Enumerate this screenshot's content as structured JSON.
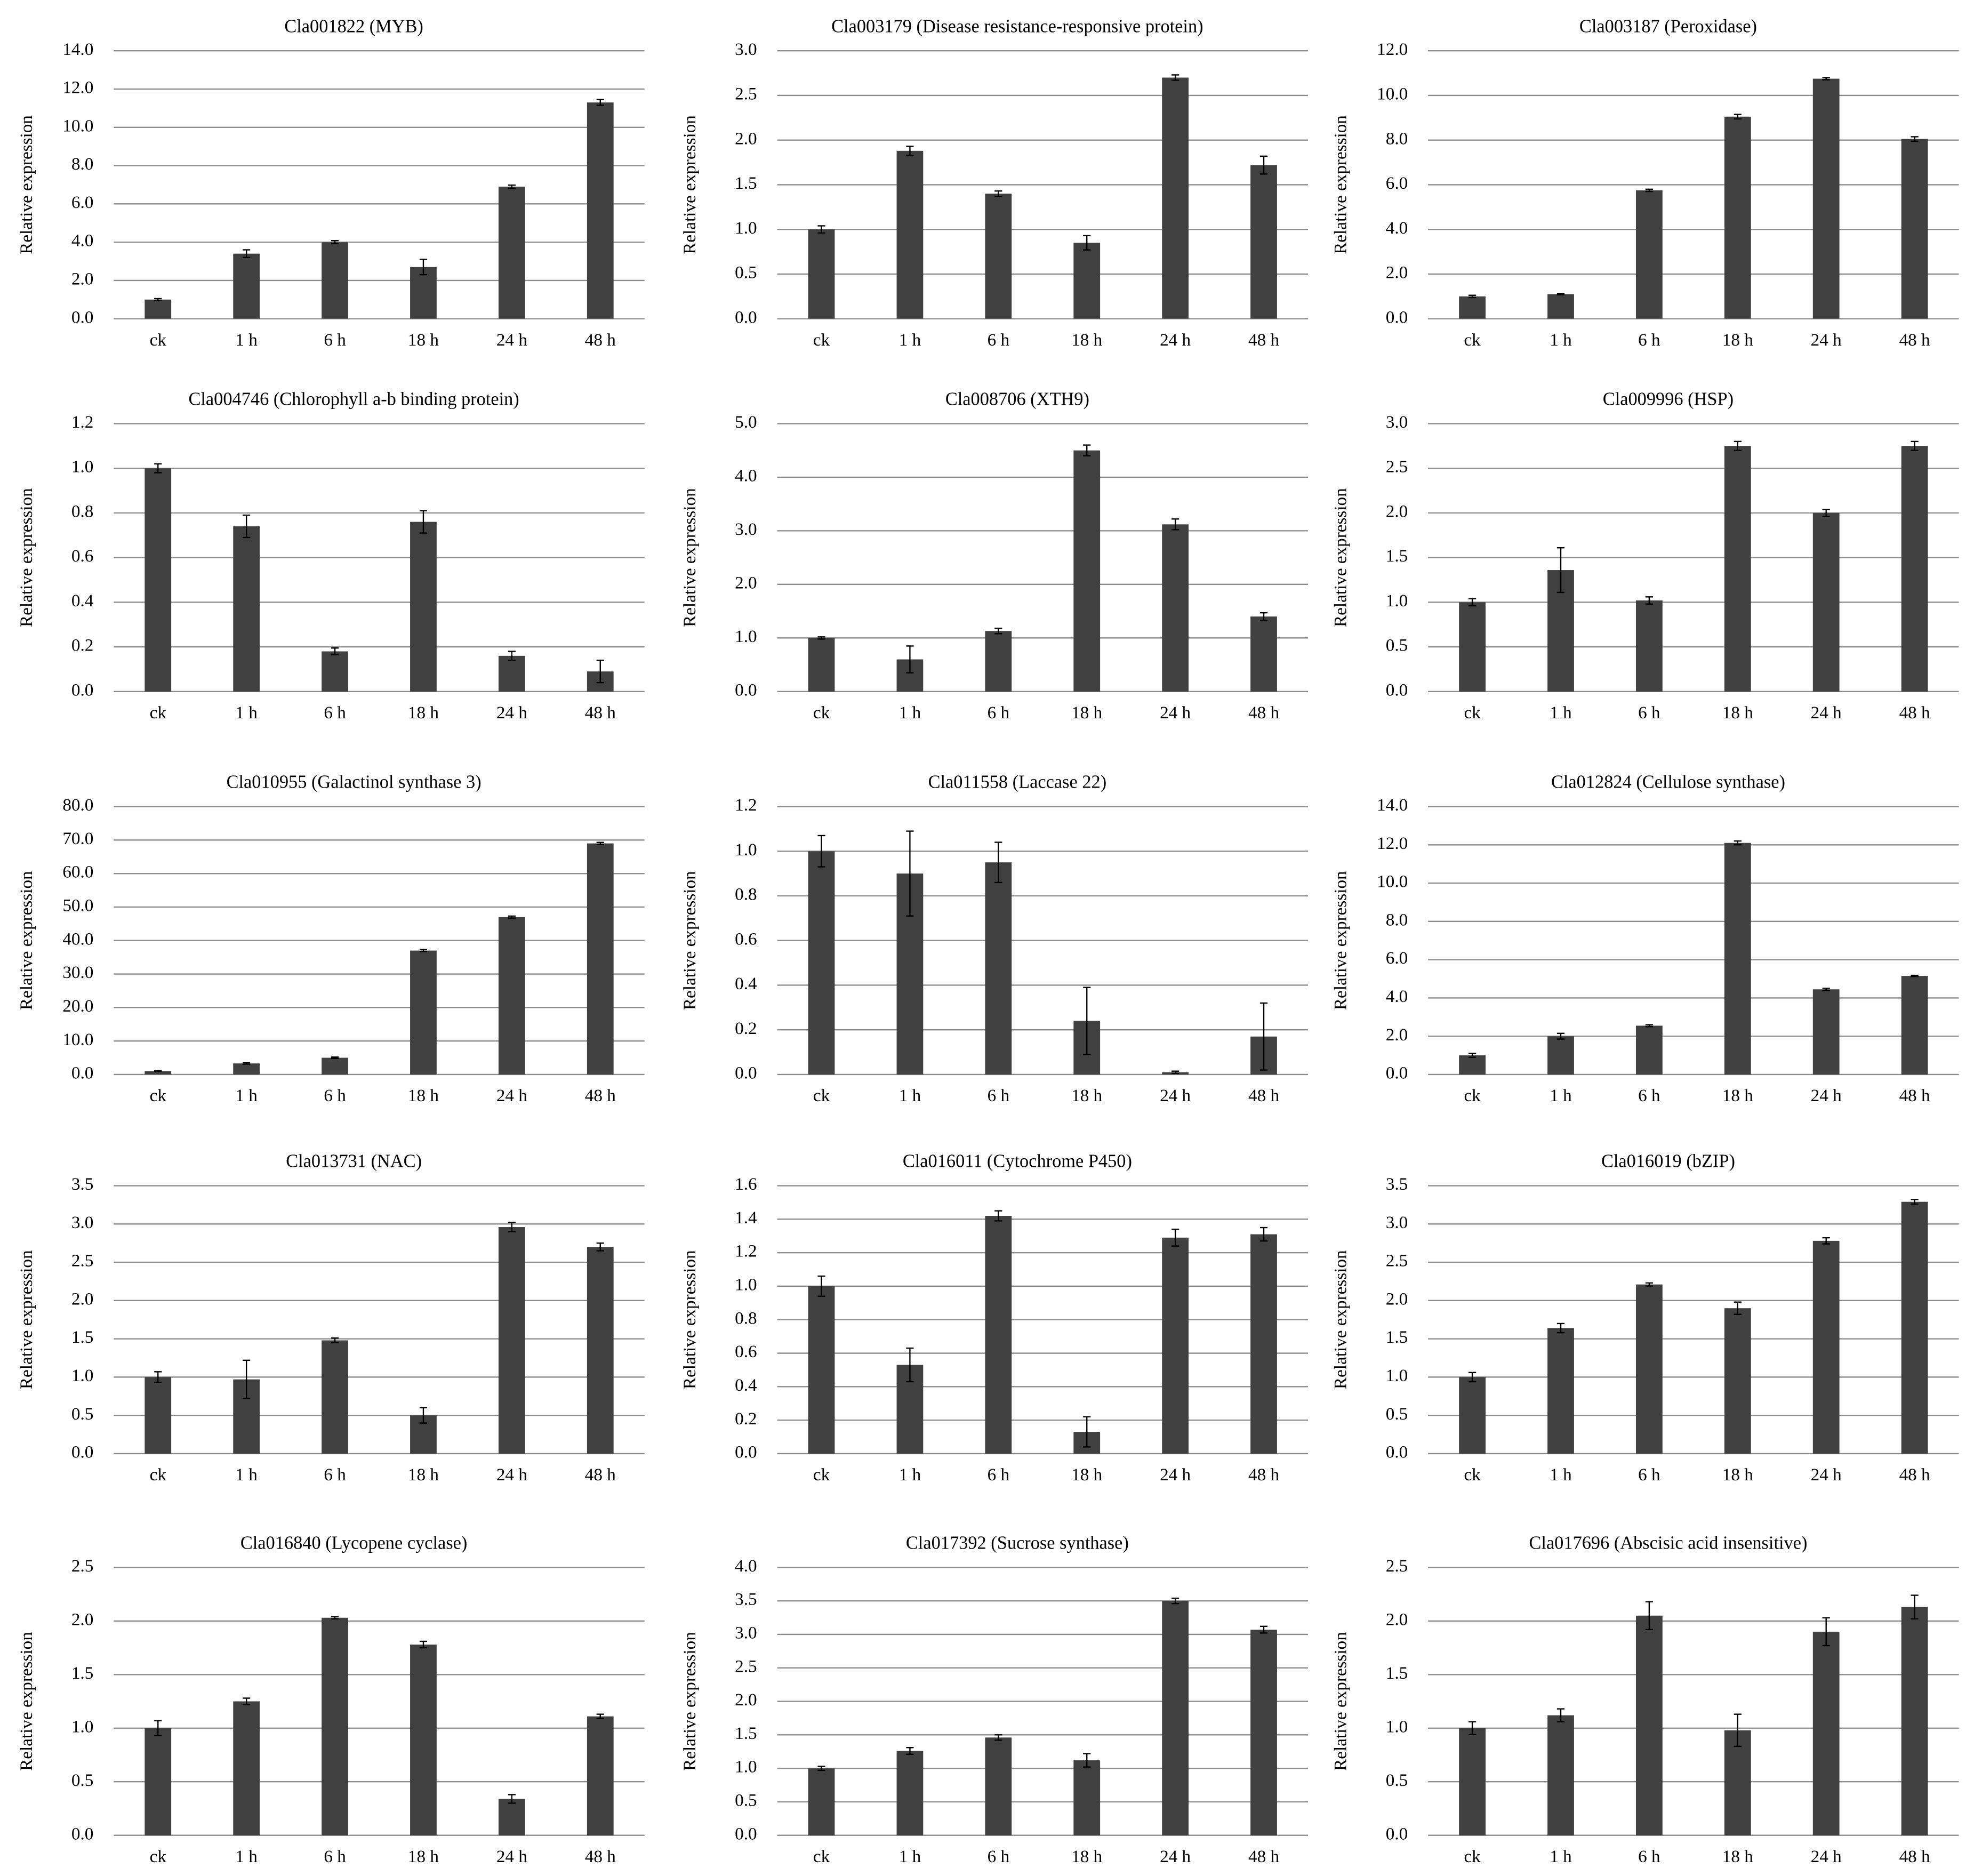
{
  "chart_data": [
    {
      "type": "bar",
      "title": "Cla001822 (MYB)",
      "y_label": "Relative expression",
      "categories": [
        "ck",
        "1 h",
        "6 h",
        "18 h",
        "24 h",
        "48 h"
      ],
      "values": [
        1.0,
        3.4,
        4.0,
        2.7,
        6.9,
        11.3
      ],
      "errors": [
        0.05,
        0.2,
        0.08,
        0.4,
        0.08,
        0.15
      ],
      "color": "#404040",
      "ylim": [
        0,
        14
      ],
      "yticks": [
        {
          "value": 0,
          "label": "0.0"
        },
        {
          "value": 2,
          "label": "2.0"
        },
        {
          "value": 4,
          "label": "4.0"
        },
        {
          "value": 6,
          "label": "6.0"
        },
        {
          "value": 8,
          "label": "8.0"
        },
        {
          "value": 10,
          "label": "10.0"
        },
        {
          "value": 12,
          "label": "12.0"
        },
        {
          "value": 14,
          "label": "14.0"
        }
      ],
      "grid": true
    },
    {
      "type": "bar",
      "title": "Cla003179 (Disease resistance-responsive protein)",
      "y_label": "Relative expression",
      "categories": [
        "ck",
        "1 h",
        "6 h",
        "18 h",
        "24 h",
        "48 h"
      ],
      "values": [
        1.0,
        1.88,
        1.4,
        0.85,
        2.7,
        1.72
      ],
      "errors": [
        0.04,
        0.05,
        0.03,
        0.08,
        0.03,
        0.1
      ],
      "color": "#404040",
      "ylim": [
        0,
        3
      ],
      "yticks": [
        {
          "value": 0,
          "label": "0.0"
        },
        {
          "value": 0.5,
          "label": "0.5"
        },
        {
          "value": 1,
          "label": "1.0"
        },
        {
          "value": 1.5,
          "label": "1.5"
        },
        {
          "value": 2,
          "label": "2.0"
        },
        {
          "value": 2.5,
          "label": "2.5"
        },
        {
          "value": 3,
          "label": "3.0"
        }
      ],
      "grid": true
    },
    {
      "type": "bar",
      "title": "Cla003187 (Peroxidase)",
      "y_label": "Relative expression",
      "categories": [
        "ck",
        "1 h",
        "6 h",
        "18 h",
        "24 h",
        "48 h"
      ],
      "values": [
        1.0,
        1.1,
        5.75,
        9.05,
        10.75,
        8.05
      ],
      "errors": [
        0.05,
        0.03,
        0.05,
        0.1,
        0.05,
        0.1
      ],
      "color": "#404040",
      "ylim": [
        0,
        12
      ],
      "yticks": [
        {
          "value": 0,
          "label": "0.0"
        },
        {
          "value": 2,
          "label": "2.0"
        },
        {
          "value": 4,
          "label": "4.0"
        },
        {
          "value": 6,
          "label": "6.0"
        },
        {
          "value": 8,
          "label": "8.0"
        },
        {
          "value": 10,
          "label": "10.0"
        },
        {
          "value": 12,
          "label": "12.0"
        }
      ],
      "grid": true
    },
    {
      "type": "bar",
      "title": "Cla004746 (Chlorophyll a-b binding protein)",
      "y_label": "Relative expression",
      "categories": [
        "ck",
        "1 h",
        "6 h",
        "18 h",
        "24 h",
        "48 h"
      ],
      "values": [
        1.0,
        0.74,
        0.18,
        0.76,
        0.16,
        0.09
      ],
      "errors": [
        0.02,
        0.05,
        0.015,
        0.05,
        0.02,
        0.05
      ],
      "color": "#404040",
      "ylim": [
        0,
        1.2
      ],
      "yticks": [
        {
          "value": 0,
          "label": "0.0"
        },
        {
          "value": 0.2,
          "label": "0.2"
        },
        {
          "value": 0.4,
          "label": "0.4"
        },
        {
          "value": 0.6,
          "label": "0.6"
        },
        {
          "value": 0.8,
          "label": "0.8"
        },
        {
          "value": 1,
          "label": "1.0"
        },
        {
          "value": 1.2,
          "label": "1.2"
        }
      ],
      "grid": true
    },
    {
      "type": "bar",
      "title": "Cla008706 (XTH9)",
      "y_label": "Relative expression",
      "categories": [
        "ck",
        "1 h",
        "6 h",
        "18 h",
        "24 h",
        "48 h"
      ],
      "values": [
        1.0,
        0.6,
        1.13,
        4.5,
        3.12,
        1.4
      ],
      "errors": [
        0.02,
        0.25,
        0.05,
        0.1,
        0.1,
        0.07
      ],
      "color": "#404040",
      "ylim": [
        0,
        5
      ],
      "yticks": [
        {
          "value": 0,
          "label": "0.0"
        },
        {
          "value": 1,
          "label": "1.0"
        },
        {
          "value": 2,
          "label": "2.0"
        },
        {
          "value": 3,
          "label": "3.0"
        },
        {
          "value": 4,
          "label": "4.0"
        },
        {
          "value": 5,
          "label": "5.0"
        }
      ],
      "grid": true
    },
    {
      "type": "bar",
      "title": "Cla009996 (HSP)",
      "y_label": "Relative expression",
      "categories": [
        "ck",
        "1 h",
        "6 h",
        "18 h",
        "24 h",
        "48 h"
      ],
      "values": [
        1.0,
        1.36,
        1.02,
        2.75,
        2.0,
        2.75
      ],
      "errors": [
        0.04,
        0.25,
        0.04,
        0.05,
        0.04,
        0.05
      ],
      "color": "#404040",
      "ylim": [
        0,
        3
      ],
      "yticks": [
        {
          "value": 0,
          "label": "0.0"
        },
        {
          "value": 0.5,
          "label": "0.5"
        },
        {
          "value": 1,
          "label": "1.0"
        },
        {
          "value": 1.5,
          "label": "1.5"
        },
        {
          "value": 2,
          "label": "2.0"
        },
        {
          "value": 2.5,
          "label": "2.5"
        },
        {
          "value": 3,
          "label": "3.0"
        }
      ],
      "grid": true
    },
    {
      "type": "bar",
      "title": "Cla010955 (Galactinol synthase 3)",
      "y_label": "Relative expression",
      "categories": [
        "ck",
        "1 h",
        "6 h",
        "18 h",
        "24 h",
        "48 h"
      ],
      "values": [
        1.0,
        3.3,
        5.0,
        37,
        47,
        69
      ],
      "errors": [
        0.1,
        0.2,
        0.2,
        0.3,
        0.3,
        0.3
      ],
      "color": "#404040",
      "ylim": [
        0,
        80
      ],
      "yticks": [
        {
          "value": 0,
          "label": "0.0"
        },
        {
          "value": 10,
          "label": "10.0"
        },
        {
          "value": 20,
          "label": "20.0"
        },
        {
          "value": 30,
          "label": "30.0"
        },
        {
          "value": 40,
          "label": "40.0"
        },
        {
          "value": 50,
          "label": "50.0"
        },
        {
          "value": 60,
          "label": "60.0"
        },
        {
          "value": 70,
          "label": "70.0"
        },
        {
          "value": 80,
          "label": "80.0"
        }
      ],
      "grid": true
    },
    {
      "type": "bar",
      "title": "Cla011558 (Laccase 22)",
      "y_label": "Relative expression",
      "categories": [
        "ck",
        "1 h",
        "6 h",
        "18 h",
        "24 h",
        "48 h"
      ],
      "values": [
        1.0,
        0.9,
        0.95,
        0.24,
        0.01,
        0.17
      ],
      "errors": [
        0.07,
        0.19,
        0.09,
        0.15,
        0.005,
        0.15
      ],
      "color": "#404040",
      "ylim": [
        0,
        1.2
      ],
      "yticks": [
        {
          "value": 0,
          "label": "0.0"
        },
        {
          "value": 0.2,
          "label": "0.2"
        },
        {
          "value": 0.4,
          "label": "0.4"
        },
        {
          "value": 0.6,
          "label": "0.6"
        },
        {
          "value": 0.8,
          "label": "0.8"
        },
        {
          "value": 1,
          "label": "1.0"
        },
        {
          "value": 1.2,
          "label": "1.2"
        }
      ],
      "grid": true
    },
    {
      "type": "bar",
      "title": "Cla012824 (Cellulose synthase)",
      "y_label": "Relative expression",
      "categories": [
        "ck",
        "1 h",
        "6 h",
        "18 h",
        "24 h",
        "48 h"
      ],
      "values": [
        1.0,
        2.0,
        2.55,
        12.1,
        4.45,
        5.15
      ],
      "errors": [
        0.1,
        0.15,
        0.05,
        0.1,
        0.05,
        0.03
      ],
      "color": "#404040",
      "ylim": [
        0,
        14
      ],
      "yticks": [
        {
          "value": 0,
          "label": "0.0"
        },
        {
          "value": 2,
          "label": "2.0"
        },
        {
          "value": 4,
          "label": "4.0"
        },
        {
          "value": 6,
          "label": "6.0"
        },
        {
          "value": 8,
          "label": "8.0"
        },
        {
          "value": 10,
          "label": "10.0"
        },
        {
          "value": 12,
          "label": "12.0"
        },
        {
          "value": 14,
          "label": "14.0"
        }
      ],
      "grid": true
    },
    {
      "type": "bar",
      "title": "Cla013731 (NAC)",
      "y_label": "Relative expression",
      "categories": [
        "ck",
        "1 h",
        "6 h",
        "18 h",
        "24 h",
        "48 h"
      ],
      "values": [
        1.0,
        0.97,
        1.48,
        0.5,
        2.96,
        2.7
      ],
      "errors": [
        0.07,
        0.25,
        0.03,
        0.1,
        0.06,
        0.05
      ],
      "color": "#404040",
      "ylim": [
        0,
        3.5
      ],
      "yticks": [
        {
          "value": 0,
          "label": "0.0"
        },
        {
          "value": 0.5,
          "label": "0.5"
        },
        {
          "value": 1,
          "label": "1.0"
        },
        {
          "value": 1.5,
          "label": "1.5"
        },
        {
          "value": 2,
          "label": "2.0"
        },
        {
          "value": 2.5,
          "label": "2.5"
        },
        {
          "value": 3,
          "label": "3.0"
        },
        {
          "value": 3.5,
          "label": "3.5"
        }
      ],
      "grid": true
    },
    {
      "type": "bar",
      "title": "Cla016011 (Cytochrome P450)",
      "y_label": "Relative expression",
      "categories": [
        "ck",
        "1 h",
        "6 h",
        "18 h",
        "24 h",
        "48 h"
      ],
      "values": [
        1.0,
        0.53,
        1.42,
        0.13,
        1.29,
        1.31
      ],
      "errors": [
        0.06,
        0.1,
        0.03,
        0.09,
        0.05,
        0.04
      ],
      "color": "#404040",
      "ylim": [
        0,
        1.6
      ],
      "yticks": [
        {
          "value": 0,
          "label": "0.0"
        },
        {
          "value": 0.2,
          "label": "0.2"
        },
        {
          "value": 0.4,
          "label": "0.4"
        },
        {
          "value": 0.6,
          "label": "0.6"
        },
        {
          "value": 0.8,
          "label": "0.8"
        },
        {
          "value": 1,
          "label": "1.0"
        },
        {
          "value": 1.2,
          "label": "1.2"
        },
        {
          "value": 1.4,
          "label": "1.4"
        },
        {
          "value": 1.6,
          "label": "1.6"
        }
      ],
      "grid": true
    },
    {
      "type": "bar",
      "title": "Cla016019 (bZIP)",
      "y_label": "Relative expression",
      "categories": [
        "ck",
        "1 h",
        "6 h",
        "18 h",
        "24 h",
        "48 h"
      ],
      "values": [
        1.0,
        1.64,
        2.21,
        1.9,
        2.78,
        3.29
      ],
      "errors": [
        0.06,
        0.06,
        0.02,
        0.08,
        0.04,
        0.03
      ],
      "color": "#404040",
      "ylim": [
        0,
        3.5
      ],
      "yticks": [
        {
          "value": 0,
          "label": "0.0"
        },
        {
          "value": 0.5,
          "label": "0.5"
        },
        {
          "value": 1,
          "label": "1.0"
        },
        {
          "value": 1.5,
          "label": "1.5"
        },
        {
          "value": 2,
          "label": "2.0"
        },
        {
          "value": 2.5,
          "label": "2.5"
        },
        {
          "value": 3,
          "label": "3.0"
        },
        {
          "value": 3.5,
          "label": "3.5"
        }
      ],
      "grid": true
    },
    {
      "type": "bar",
      "title": "Cla016840 (Lycopene cyclase)",
      "y_label": "Relative expression",
      "categories": [
        "ck",
        "1 h",
        "6 h",
        "18 h",
        "24 h",
        "48 h"
      ],
      "values": [
        1.0,
        1.25,
        2.03,
        1.78,
        0.34,
        1.11
      ],
      "errors": [
        0.07,
        0.03,
        0.01,
        0.03,
        0.04,
        0.02
      ],
      "color": "#404040",
      "ylim": [
        0,
        2.5
      ],
      "yticks": [
        {
          "value": 0,
          "label": "0.0"
        },
        {
          "value": 0.5,
          "label": "0.5"
        },
        {
          "value": 1,
          "label": "1.0"
        },
        {
          "value": 1.5,
          "label": "1.5"
        },
        {
          "value": 2,
          "label": "2.0"
        },
        {
          "value": 2.5,
          "label": "2.5"
        }
      ],
      "grid": true
    },
    {
      "type": "bar",
      "title": "Cla017392 (Sucrose synthase)",
      "y_label": "Relative expression",
      "categories": [
        "ck",
        "1 h",
        "6 h",
        "18 h",
        "24 h",
        "48 h"
      ],
      "values": [
        1.0,
        1.26,
        1.46,
        1.12,
        3.5,
        3.07
      ],
      "errors": [
        0.03,
        0.05,
        0.04,
        0.1,
        0.04,
        0.05
      ],
      "color": "#404040",
      "ylim": [
        0,
        4
      ],
      "yticks": [
        {
          "value": 0,
          "label": "0.0"
        },
        {
          "value": 0.5,
          "label": "0.5"
        },
        {
          "value": 1,
          "label": "1.0"
        },
        {
          "value": 1.5,
          "label": "1.5"
        },
        {
          "value": 2,
          "label": "2.0"
        },
        {
          "value": 2.5,
          "label": "2.5"
        },
        {
          "value": 3,
          "label": "3.0"
        },
        {
          "value": 3.5,
          "label": "3.5"
        },
        {
          "value": 4,
          "label": "4.0"
        }
      ],
      "grid": true
    },
    {
      "type": "bar",
      "title": "Cla017696 (Abscisic acid insensitive)",
      "y_label": "Relative expression",
      "categories": [
        "ck",
        "1 h",
        "6 h",
        "18 h",
        "24 h",
        "48 h"
      ],
      "values": [
        1.0,
        1.12,
        2.05,
        0.98,
        1.9,
        2.13
      ],
      "errors": [
        0.06,
        0.06,
        0.13,
        0.15,
        0.13,
        0.11
      ],
      "color": "#404040",
      "ylim": [
        0,
        2.5
      ],
      "yticks": [
        {
          "value": 0,
          "label": "0.0"
        },
        {
          "value": 0.5,
          "label": "0.5"
        },
        {
          "value": 1,
          "label": "1.0"
        },
        {
          "value": 1.5,
          "label": "1.5"
        },
        {
          "value": 2,
          "label": "2.0"
        },
        {
          "value": 2.5,
          "label": "2.5"
        }
      ],
      "grid": true
    }
  ]
}
